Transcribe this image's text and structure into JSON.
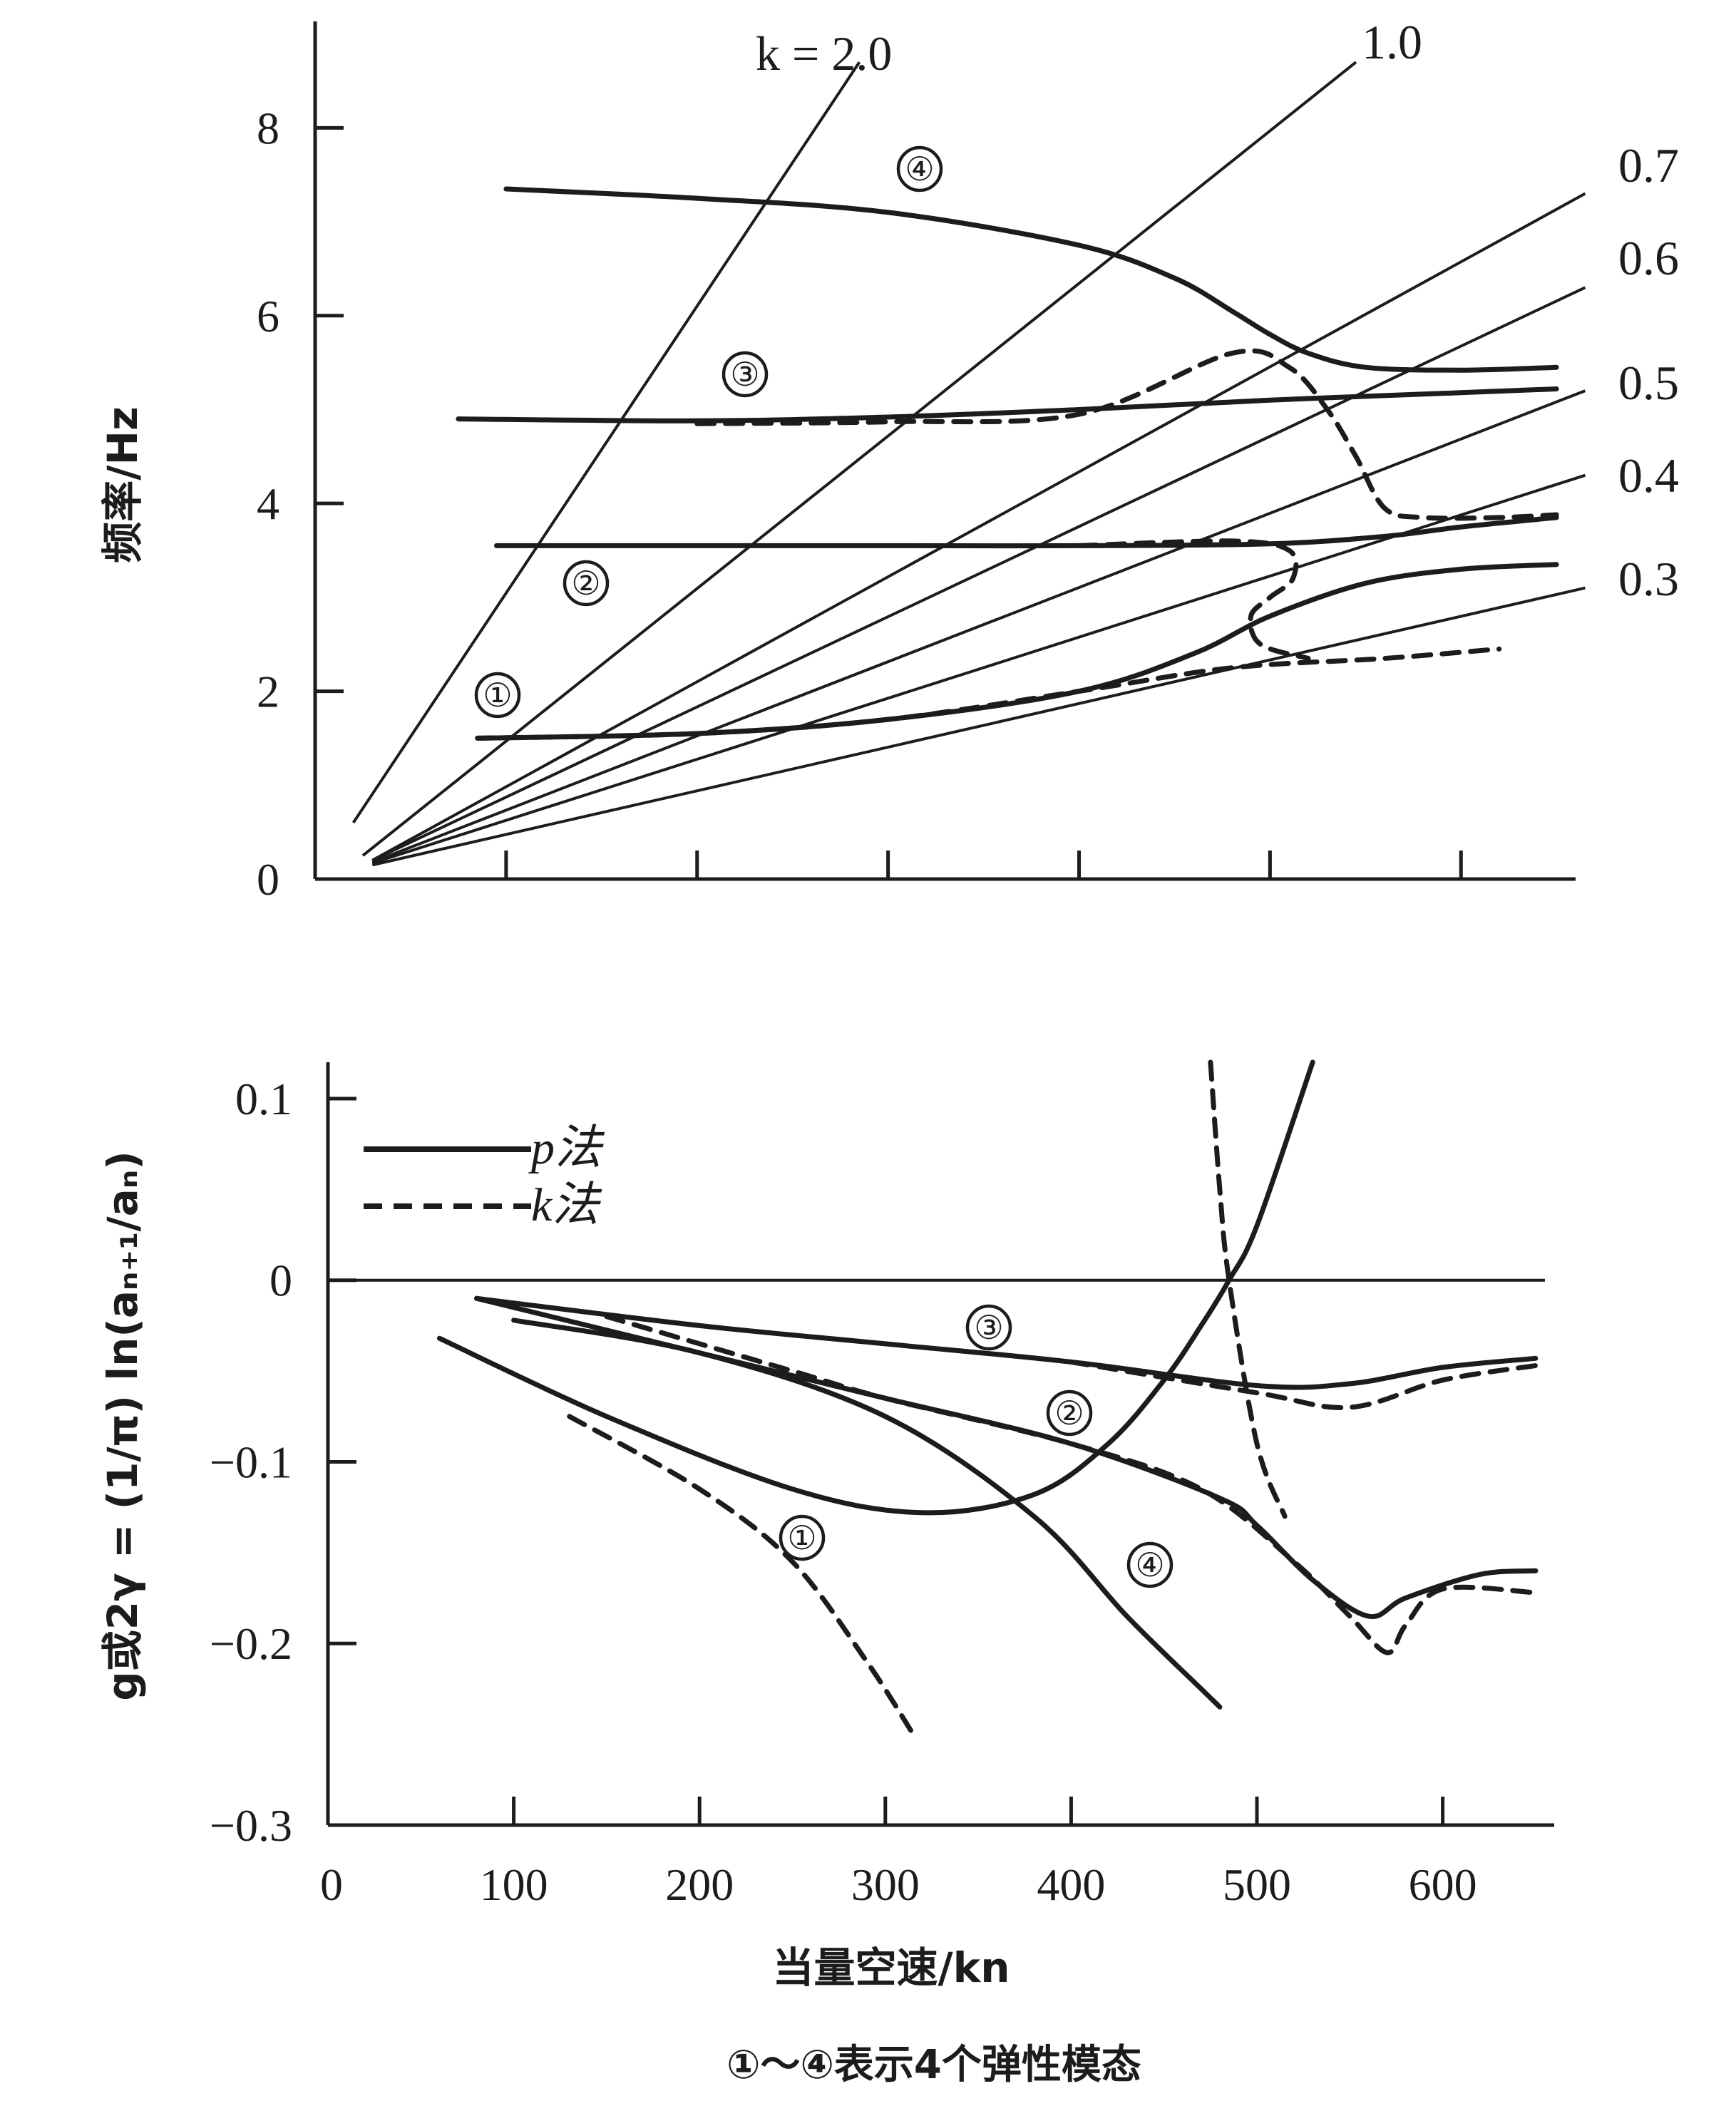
{
  "figure": {
    "x_axis_title": "当量空速/kn",
    "caption": "①～④表示4个弹性模态",
    "legend": [
      {
        "label": "p法",
        "style": "solid"
      },
      {
        "label": "k法",
        "style": "dashed"
      }
    ],
    "ink_color": "#1c1c1c"
  },
  "chart_data": [
    {
      "type": "line",
      "panel": "top",
      "ylabel": "频率/Hz",
      "xlabel": "",
      "xlim": [
        0,
        660
      ],
      "ylim": [
        0,
        8.8
      ],
      "x_ticks": [
        100,
        200,
        300,
        400,
        500,
        600
      ],
      "y_ticks": [
        0,
        2,
        4,
        6,
        8
      ],
      "y_tick_labels": [
        "0",
        "2",
        "4",
        "6",
        "8"
      ],
      "reduced_frequency_lines": {
        "labels": [
          "k = 2.0",
          "1.0",
          "0.7",
          "0.6",
          "0.5",
          "0.4",
          "0.3"
        ],
        "k": [
          2.0,
          1.0,
          0.7,
          0.6,
          0.5,
          0.4,
          0.3
        ],
        "endpoints": [
          [
            [
              20,
              0.6
            ],
            [
              285,
              8.7
            ]
          ],
          [
            [
              25,
              0.25
            ],
            [
              545,
              8.7
            ]
          ],
          [
            [
              30,
              0.2
            ],
            [
              665,
              7.3
            ]
          ],
          [
            [
              30,
              0.2
            ],
            [
              665,
              6.3
            ]
          ],
          [
            [
              30,
              0.18
            ],
            [
              665,
              5.2
            ]
          ],
          [
            [
              30,
              0.17
            ],
            [
              665,
              4.3
            ]
          ],
          [
            [
              30,
              0.15
            ],
            [
              665,
              3.1
            ]
          ]
        ]
      },
      "mode_labels": [
        "①",
        "②",
        "③",
        "④"
      ],
      "series": [
        {
          "name": "④",
          "style": "solid",
          "x": [
            100,
            200,
            300,
            400,
            450,
            480,
            500,
            520,
            550,
            600,
            650
          ],
          "y": [
            7.35,
            7.25,
            7.1,
            6.75,
            6.4,
            6.05,
            5.8,
            5.6,
            5.45,
            5.42,
            5.45
          ]
        },
        {
          "name": "③",
          "style": "solid",
          "x": [
            75,
            200,
            300,
            400,
            500,
            600,
            650
          ],
          "y": [
            4.9,
            4.88,
            4.92,
            5.0,
            5.1,
            5.18,
            5.22
          ]
        },
        {
          "name": "③",
          "style": "dashed",
          "x": [
            200,
            300,
            400,
            480,
            510,
            530,
            545,
            560,
            580,
            620,
            650
          ],
          "y": [
            4.85,
            4.87,
            4.95,
            5.6,
            5.45,
            5.0,
            4.5,
            3.95,
            3.85,
            3.85,
            3.88
          ]
        },
        {
          "name": "②",
          "style": "solid",
          "x": [
            95,
            200,
            300,
            400,
            500,
            560,
            600,
            650
          ],
          "y": [
            3.55,
            3.55,
            3.55,
            3.55,
            3.57,
            3.65,
            3.75,
            3.85
          ]
        },
        {
          "name": "②",
          "style": "dashed",
          "x": [
            400,
            480,
            510,
            512,
            500,
            490,
            495,
            520
          ],
          "y": [
            3.55,
            3.6,
            3.5,
            3.2,
            3.0,
            2.8,
            2.5,
            2.35
          ]
        },
        {
          "name": "①",
          "style": "solid",
          "x": [
            85,
            200,
            300,
            400,
            460,
            500,
            550,
            600,
            650
          ],
          "y": [
            1.5,
            1.55,
            1.7,
            2.0,
            2.4,
            2.8,
            3.15,
            3.3,
            3.35
          ]
        },
        {
          "name": "①",
          "style": "dashed",
          "x": [
            85,
            200,
            300,
            400,
            480,
            560,
            620
          ],
          "y": [
            1.5,
            1.55,
            1.7,
            2.0,
            2.25,
            2.35,
            2.45
          ]
        }
      ]
    },
    {
      "type": "line",
      "panel": "bottom",
      "ylabel": "g或2γ = (1/π) ln(aₙ₊₁/aₙ)",
      "xlabel": "当量空速/kn",
      "xlim": [
        0,
        660
      ],
      "ylim": [
        -0.3,
        0.12
      ],
      "x_ticks": [
        0,
        100,
        200,
        300,
        400,
        500,
        600
      ],
      "x_tick_labels": [
        "0",
        "100",
        "200",
        "300",
        "400",
        "500",
        "600"
      ],
      "y_ticks": [
        0.1,
        0,
        -0.1,
        -0.2,
        -0.3
      ],
      "y_tick_labels": [
        "0.1",
        "0",
        "−0.1",
        "−0.2",
        "−0.3"
      ],
      "mode_labels": [
        "①",
        "②",
        "③",
        "④"
      ],
      "series": [
        {
          "name": "①",
          "style": "solid",
          "x": [
            60,
            150,
            250,
            320,
            380,
            420,
            450,
            470,
            485,
            500,
            530
          ],
          "y": [
            -0.032,
            -0.075,
            -0.115,
            -0.128,
            -0.118,
            -0.09,
            -0.055,
            -0.025,
            0.0,
            0.03,
            0.12
          ]
        },
        {
          "name": "①",
          "style": "dashed",
          "x": [
            130,
            200,
            250,
            290,
            315
          ],
          "y": [
            -0.075,
            -0.115,
            -0.155,
            -0.21,
            -0.25
          ]
        },
        {
          "name": "②",
          "style": "solid",
          "x": [
            80,
            200,
            300,
            400,
            480,
            500,
            530,
            560,
            580,
            620,
            650
          ],
          "y": [
            -0.01,
            -0.04,
            -0.065,
            -0.09,
            -0.12,
            -0.135,
            -0.165,
            -0.185,
            -0.175,
            -0.162,
            -0.16
          ]
        },
        {
          "name": "②",
          "style": "dashed",
          "x": [
            150,
            250,
            300,
            400,
            470,
            520,
            550,
            570,
            580,
            600,
            650
          ],
          "y": [
            -0.02,
            -0.05,
            -0.065,
            -0.09,
            -0.115,
            -0.155,
            -0.185,
            -0.205,
            -0.19,
            -0.17,
            -0.172
          ]
        },
        {
          "name": "③",
          "style": "solid",
          "x": [
            80,
            200,
            300,
            400,
            500,
            550,
            600,
            650
          ],
          "y": [
            -0.01,
            -0.025,
            -0.035,
            -0.045,
            -0.058,
            -0.057,
            -0.048,
            -0.043
          ]
        },
        {
          "name": "③",
          "style": "dashed",
          "x": [
            400,
            500,
            550,
            600,
            650
          ],
          "y": [
            -0.045,
            -0.062,
            -0.07,
            -0.055,
            -0.047
          ]
        },
        {
          "name": "④",
          "style": "solid",
          "x": [
            100,
            200,
            300,
            380,
            430,
            470,
            480
          ],
          "y": [
            -0.022,
            -0.04,
            -0.075,
            -0.13,
            -0.185,
            -0.225,
            -0.235
          ]
        },
        {
          "name": "④",
          "style": "dashed",
          "x": [
            475,
            480,
            485,
            500,
            515
          ],
          "y": [
            0.12,
            0.05,
            0.0,
            -0.09,
            -0.13
          ]
        }
      ]
    }
  ]
}
